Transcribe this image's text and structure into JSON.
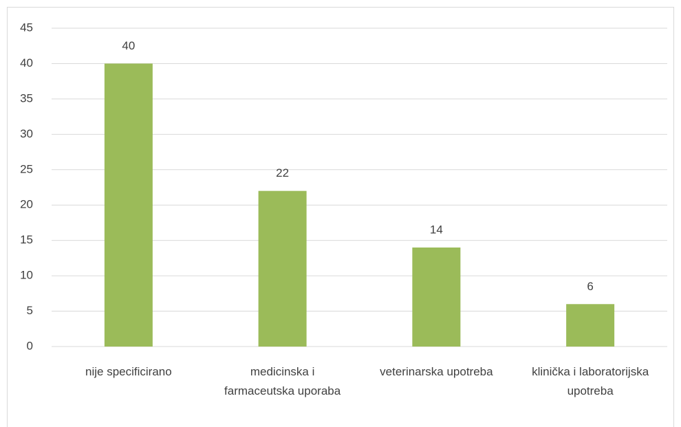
{
  "chart_data": {
    "type": "bar",
    "categories": [
      "nije specificirano",
      "medicinska i farmaceutska uporaba",
      "veterinarska upotreba",
      "klinička i laboratorijska upotreba"
    ],
    "values": [
      40,
      22,
      14,
      6
    ],
    "color": "#9bbb59",
    "ylim": [
      0,
      45
    ],
    "yticks": [
      0,
      5,
      10,
      15,
      20,
      25,
      30,
      35,
      40,
      45
    ],
    "grid": true,
    "data_labels": true
  }
}
